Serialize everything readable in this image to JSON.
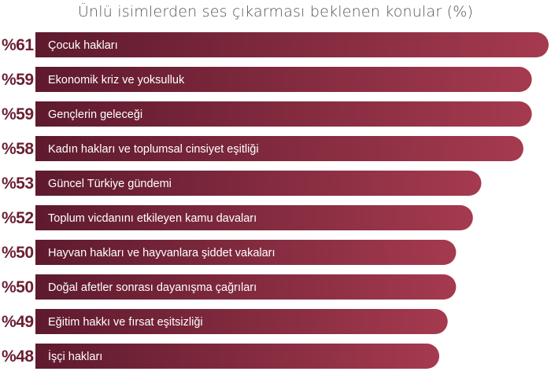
{
  "chart_data": {
    "type": "bar",
    "orientation": "horizontal",
    "title": "Ünlü isimlerden ses çıkarması beklenen konular (%)",
    "xlabel": "",
    "ylabel": "",
    "value_prefix": "%",
    "xlim": [
      0,
      61
    ],
    "grid": false,
    "legend": "none",
    "colors": {
      "bar_start": "#5e1a2e",
      "bar_end": "#a53a4f",
      "value_text": "#6b1f33",
      "label_text": "#ffffff",
      "title_text": "#555555"
    },
    "categories": [
      "Çocuk hakları",
      "Ekonomik kriz ve yoksulluk",
      "Gençlerin geleceği",
      "Kadın hakları ve toplumsal cinsiyet eşitliği",
      "Güncel Türkiye gündemi",
      "Toplum vicdanını etkileyen kamu davaları",
      "Hayvan hakları ve hayvanlara şiddet vakaları",
      "Doğal afetler sonrası dayanışma çağrıları",
      "Eğitim hakkı ve fırsat eşitsizliği",
      "İşçi hakları"
    ],
    "values": [
      61,
      59,
      59,
      58,
      53,
      52,
      50,
      50,
      49,
      48
    ],
    "value_labels": [
      "%61",
      "%59",
      "%59",
      "%58",
      "%53",
      "%52",
      "%50",
      "%50",
      "%49",
      "%48"
    ]
  }
}
